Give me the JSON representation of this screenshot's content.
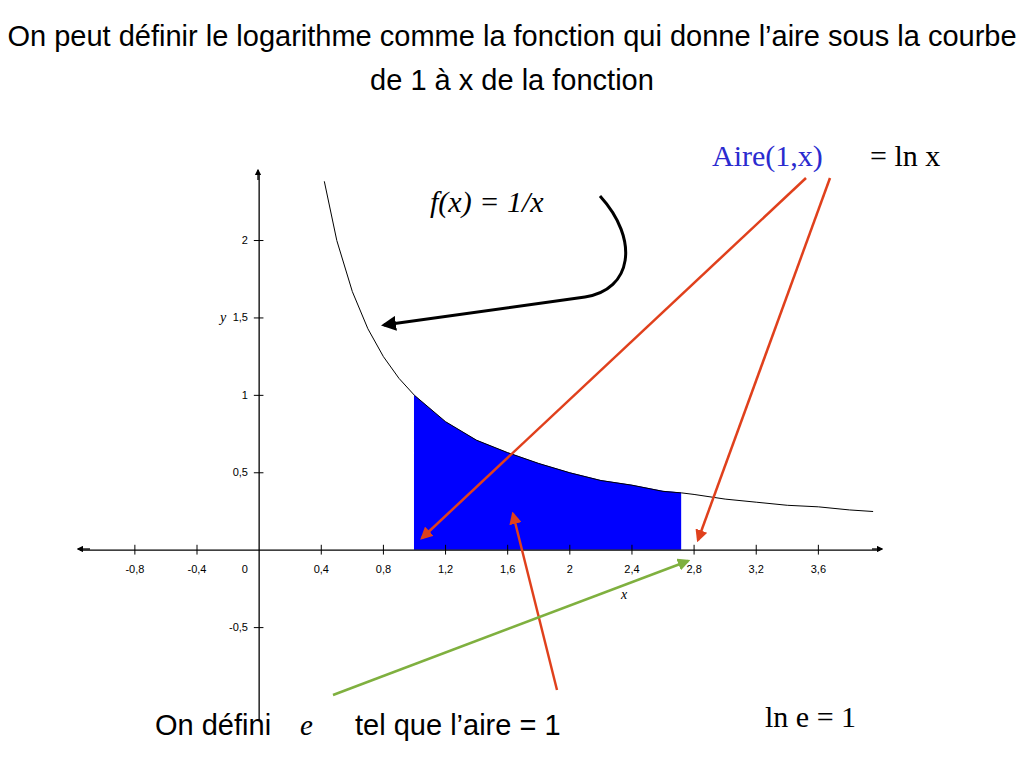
{
  "chart_data": {
    "type": "line",
    "title": "On peut définir le logarithme comme la fonction qui donne l’aire sous la courbe de 1 à x de la fonction",
    "xlabel": "x",
    "ylabel": "y",
    "x": [
      0.42,
      0.5,
      0.6,
      0.7,
      0.8,
      0.9,
      1,
      1.2,
      1.4,
      1.6,
      1.8,
      2,
      2.2,
      2.4,
      2.6,
      2.72,
      2.8,
      3,
      3.2,
      3.4,
      3.6,
      3.8,
      3.95
    ],
    "series": [
      {
        "name": "f(x) = 1/x",
        "type": "line",
        "color": "#000000",
        "values": [
          2.38,
          2,
          1.67,
          1.43,
          1.25,
          1.11,
          1,
          0.83,
          0.71,
          0.63,
          0.56,
          0.5,
          0.45,
          0.42,
          0.38,
          0.37,
          0.36,
          0.33,
          0.31,
          0.29,
          0.28,
          0.26,
          0.25
        ]
      },
      {
        "name": "Aire(1,x)",
        "type": "area",
        "color": "#0000ff",
        "values": [
          null,
          null,
          null,
          null,
          null,
          null,
          1,
          0.83,
          0.71,
          0.63,
          0.56,
          0.5,
          0.45,
          0.42,
          0.38,
          0.37,
          null,
          null,
          null,
          null,
          null,
          null,
          null
        ]
      }
    ],
    "xlim": [
      -1.15,
      4.0
    ],
    "ylim": [
      -1.1,
      2.42
    ],
    "xticks": [
      {
        "value": -0.8,
        "label": "-0,8"
      },
      {
        "value": -0.4,
        "label": "-0,4"
      },
      0,
      {
        "value": 0.4,
        "label": "0,4"
      },
      {
        "value": 0.8,
        "label": "0,8"
      },
      {
        "value": 1.2,
        "label": "1,2"
      },
      {
        "value": 1.6,
        "label": "1,6"
      },
      2,
      {
        "value": 2.4,
        "label": "2,4"
      },
      {
        "value": 2.8,
        "label": "2,8"
      },
      {
        "value": 3.2,
        "label": "3,2"
      },
      {
        "value": 3.6,
        "label": "3,6"
      }
    ],
    "yticks": [
      {
        "value": -0.5,
        "label": "-0,5"
      },
      {
        "value": 0.5,
        "label": "0,5"
      },
      1,
      {
        "value": 1.5,
        "label": "1,5"
      },
      2
    ],
    "grid": false,
    "annotations": [
      "f(x) = 1/x",
      "Aire(1,x)",
      "= ln x",
      "On défini",
      "e",
      "tel que l’aire = 1",
      "ln e = 1"
    ]
  }
}
